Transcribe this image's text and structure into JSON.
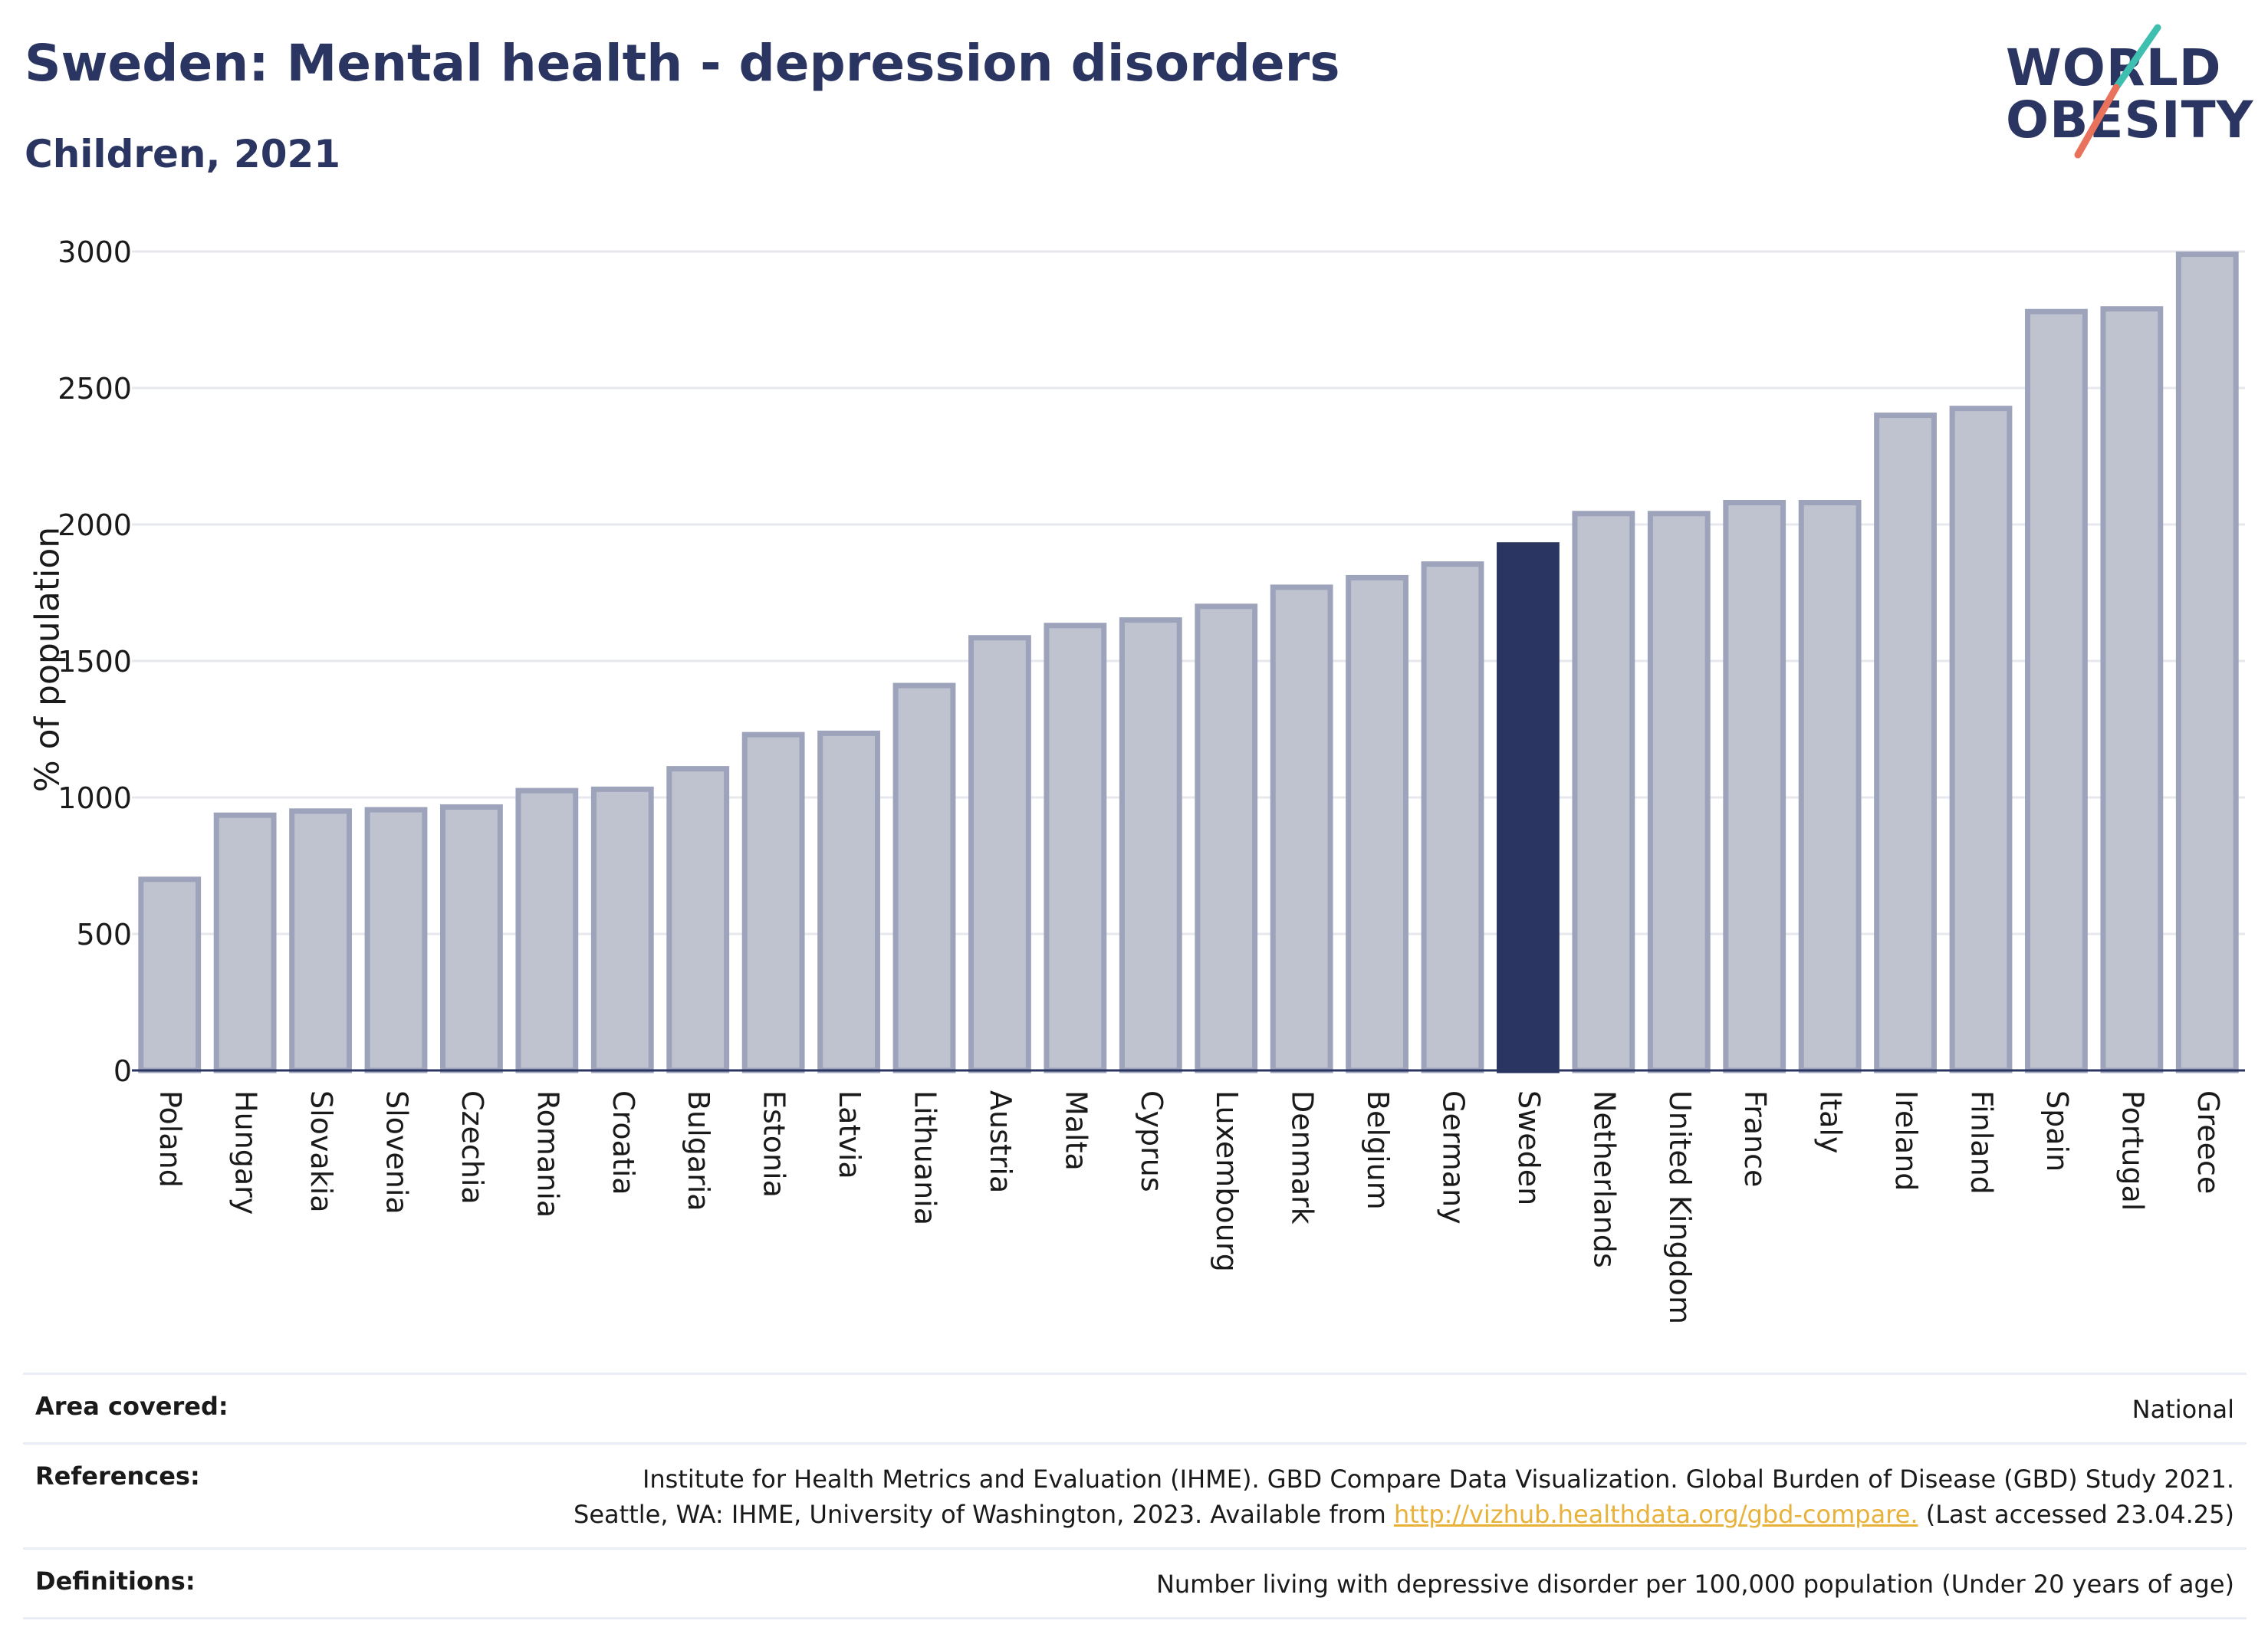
{
  "header": {
    "title": "Sweden: Mental health - depression disorders",
    "subtitle": "Children, 2021"
  },
  "logo": {
    "line1": "WORLD",
    "line2": "OBESITY",
    "colors": {
      "text": "#2b3561",
      "slash_top": "#3ebfb0",
      "slash_bottom": "#e8725c"
    }
  },
  "chart_data": {
    "type": "bar",
    "ylabel": "% of population",
    "xlabel": "",
    "ylim": [
      0,
      3000
    ],
    "yticks": [
      0,
      500,
      1000,
      1500,
      2000,
      2500,
      3000
    ],
    "grid": true,
    "highlight": "Sweden",
    "colors": {
      "bar": "#bfc3d0",
      "bar_edge": "#9da3ba",
      "highlight": "#2b3561",
      "grid": "#e6e8ee"
    },
    "categories": [
      "Poland",
      "Hungary",
      "Slovakia",
      "Slovenia",
      "Czechia",
      "Romania",
      "Croatia",
      "Bulgaria",
      "Estonia",
      "Latvia",
      "Lithuania",
      "Austria",
      "Malta",
      "Cyprus",
      "Luxembourg",
      "Denmark",
      "Belgium",
      "Germany",
      "Sweden",
      "Netherlands",
      "United Kingdom",
      "France",
      "Italy",
      "Ireland",
      "Finland",
      "Spain",
      "Portugal",
      "Greece"
    ],
    "values": [
      700,
      935,
      950,
      955,
      965,
      1025,
      1030,
      1105,
      1230,
      1235,
      1410,
      1585,
      1630,
      1650,
      1700,
      1770,
      1805,
      1855,
      1925,
      2040,
      2040,
      2080,
      2080,
      2400,
      2425,
      2780,
      2790,
      2990
    ]
  },
  "info": {
    "area_label": "Area covered:",
    "area_value": "National",
    "references_label": "References:",
    "references_line1": "Institute for Health Metrics and Evaluation (IHME). GBD Compare Data Visualization. Global Burden of Disease (GBD) Study 2021.",
    "references_line2_pre": "Seattle, WA: IHME, University of Washington, 2023. Available from ",
    "references_link": "http://vizhub.healthdata.org/gbd-compare.",
    "references_line2_post": " (Last accessed 23.04.25)",
    "definitions_label": "Definitions:",
    "definitions_value": "Number living with depressive disorder per 100,000 population (Under 20 years of age)"
  }
}
